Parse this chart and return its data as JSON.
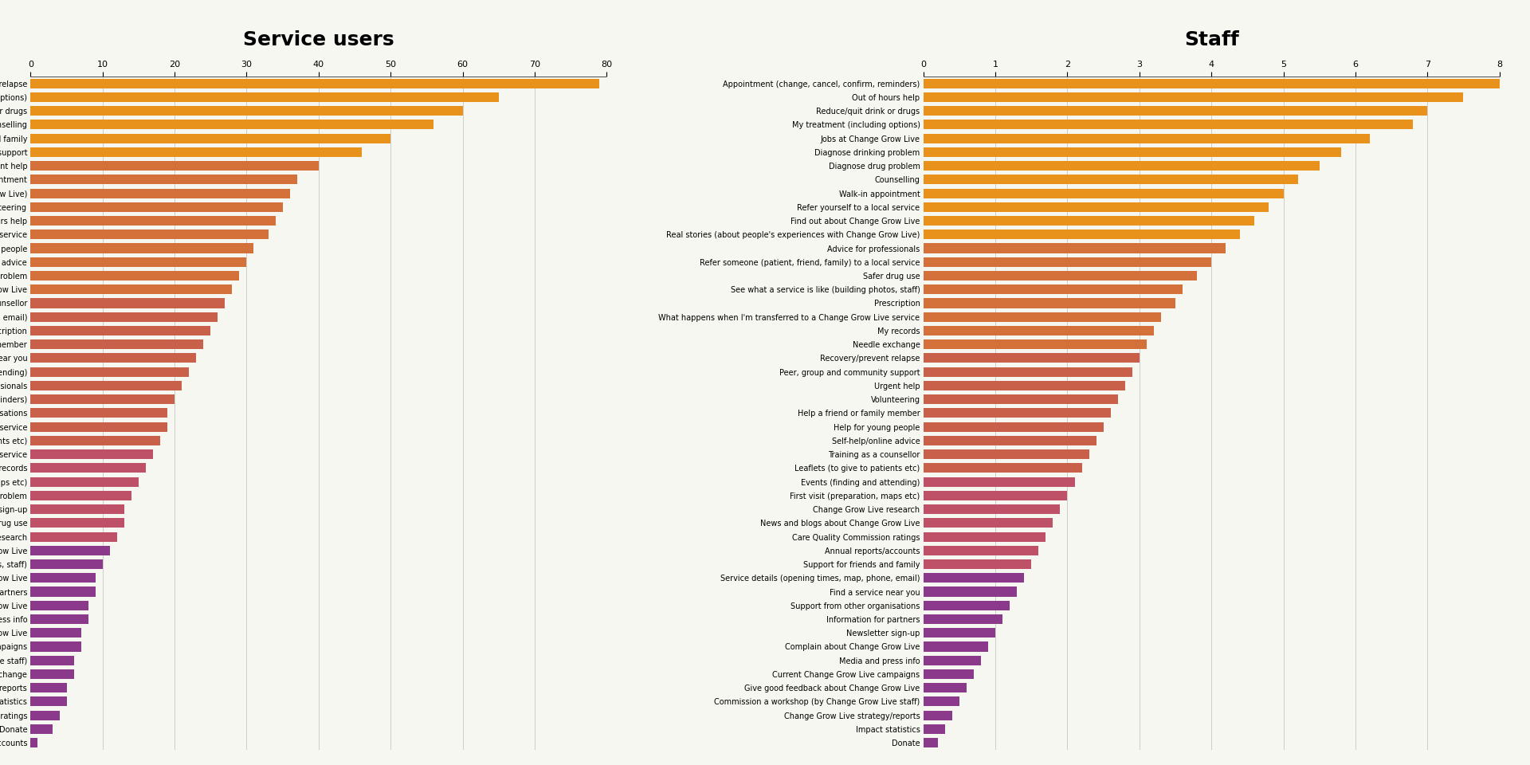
{
  "title_left": "Service users",
  "title_right": "Staff",
  "su_labels": [
    "Recovery/prevent relapse",
    "My treatment (including options)",
    "Reduce/quit drink or drugs",
    "Counselling",
    "Support for friends and family",
    "Peer, group and community support",
    "Urgent help",
    "Walk-in appointment",
    "Real stories (about people's experiences with Change Grow Live)",
    "Volunteering",
    "Out of hours help",
    "Refer yourself to a local service",
    "Help for young people",
    "Self-help/online advice",
    "Diagnose drinking problem",
    "Jobs at Change Grow Live",
    "Training as a counsellor",
    "Service details (opening times, map, phone, email)",
    "Prescription",
    "Help a friend or family member",
    "Find a service near you",
    "Events (finding and attending)",
    "Advice for professionals",
    "Appointment (change, cancel, confirm, reminders)",
    "Support from other organisations",
    "Refer someone (patient, friend, family) to a local service",
    "Leaflets (to give to patients etc)",
    "What happens when I'm transferred to a Change Grow Live service",
    "My records",
    "First visit (preparation, maps etc)",
    "Diagnose drug problem",
    "Newsletter sign-up",
    "Safer drug use",
    "Change Grow Live research",
    "Find out about Change Grow Live",
    "See what a service is like (building photos, staff)",
    "News and blogs about Change Grow Live",
    "Information for partners",
    "Complain about Change Grow Live",
    "Media and press info",
    "Give good feedback about Change Grow Live",
    "Current Change Grow Live campaigns",
    "Commission a workshop (by Change Grow Live staff)",
    "Needle exchange",
    "Change Grow Live strategy/reports",
    "Impact statistics",
    "Care Quality Commission ratings",
    "Donate",
    "Annual reports/accounts"
  ],
  "su_values": [
    79,
    65,
    60,
    56,
    50,
    46,
    40,
    37,
    36,
    35,
    34,
    33,
    31,
    30,
    29,
    28,
    27,
    26,
    25,
    24,
    23,
    22,
    21,
    20,
    19,
    19,
    18,
    17,
    16,
    15,
    14,
    13,
    13,
    12,
    11,
    10,
    9,
    9,
    8,
    8,
    7,
    7,
    6,
    6,
    5,
    5,
    4,
    3,
    1
  ],
  "staff_labels": [
    "Appointment (change, cancel, confirm, reminders)",
    "Out of hours help",
    "Reduce/quit drink or drugs",
    "My treatment (including options)",
    "Jobs at Change Grow Live",
    "Diagnose drinking problem",
    "Diagnose drug problem",
    "Counselling",
    "Walk-in appointment",
    "Refer yourself to a local service",
    "Find out about Change Grow Live",
    "Real stories (about people's experiences with Change Grow Live)",
    "Advice for professionals",
    "Refer someone (patient, friend, family) to a local service",
    "Safer drug use",
    "See what a service is like (building photos, staff)",
    "Prescription",
    "What happens when I'm transferred to a Change Grow Live service",
    "My records",
    "Needle exchange",
    "Recovery/prevent relapse",
    "Peer, group and community support",
    "Urgent help",
    "Volunteering",
    "Help a friend or family member",
    "Help for young people",
    "Self-help/online advice",
    "Training as a counsellor",
    "Leaflets (to give to patients etc)",
    "Events (finding and attending)",
    "First visit (preparation, maps etc)",
    "Change Grow Live research",
    "News and blogs about Change Grow Live",
    "Care Quality Commission ratings",
    "Annual reports/accounts",
    "Support for friends and family",
    "Service details (opening times, map, phone, email)",
    "Find a service near you",
    "Support from other organisations",
    "Information for partners",
    "Newsletter sign-up",
    "Complain about Change Grow Live",
    "Media and press info",
    "Current Change Grow Live campaigns",
    "Give good feedback about Change Grow Live",
    "Commission a workshop (by Change Grow Live staff)",
    "Change Grow Live strategy/reports",
    "Impact statistics",
    "Donate"
  ],
  "staff_values": [
    8.0,
    7.5,
    7.0,
    6.8,
    6.2,
    5.8,
    5.5,
    5.2,
    5.0,
    4.8,
    4.6,
    4.4,
    4.2,
    4.0,
    3.8,
    3.6,
    3.5,
    3.3,
    3.2,
    3.1,
    3.0,
    2.9,
    2.8,
    2.7,
    2.6,
    2.5,
    2.4,
    2.3,
    2.2,
    2.1,
    2.0,
    1.9,
    1.8,
    1.7,
    1.6,
    1.5,
    1.4,
    1.3,
    1.2,
    1.1,
    1.0,
    0.9,
    0.8,
    0.7,
    0.6,
    0.5,
    0.4,
    0.3,
    0.2
  ],
  "su_xlim": [
    0,
    80
  ],
  "su_xticks": [
    0,
    10,
    20,
    30,
    40,
    50,
    60,
    70,
    80
  ],
  "staff_xlim": [
    0,
    8
  ],
  "staff_xticks": [
    0,
    1,
    2,
    3,
    4,
    5,
    6,
    7,
    8
  ],
  "background_color": "#f7f7f2",
  "label_fontsize": 7.0,
  "title_fontsize": 18,
  "bar_height": 0.7
}
